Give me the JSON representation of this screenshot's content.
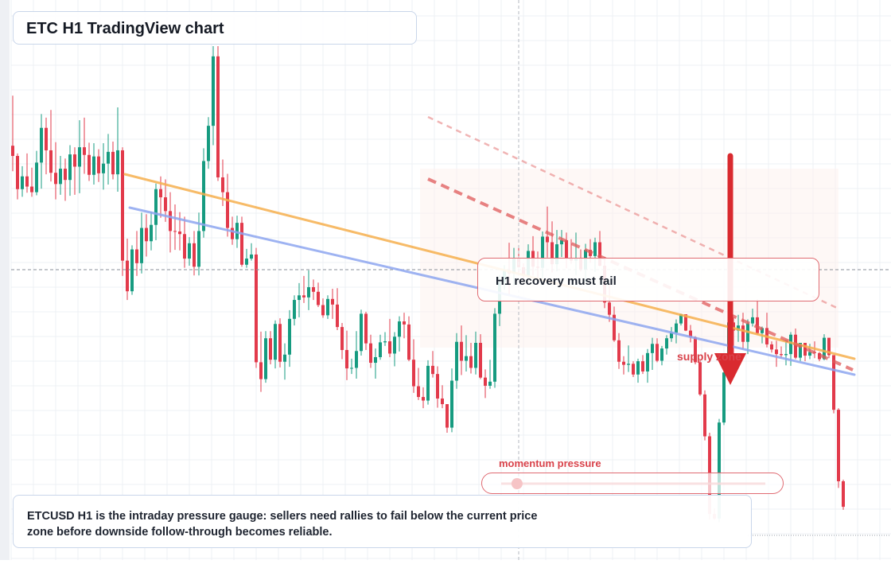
{
  "title": "ETC H1 TradingView chart",
  "callout": {
    "text": "H1 recovery must fail"
  },
  "supply": {
    "label": "supply zone"
  },
  "gauge": {
    "label": "momentum pressure",
    "level": 0.06,
    "color": "#e23a42"
  },
  "note": {
    "text": "ETCUSD H1 is the intraday pressure gauge: sellers need rallies to fail below the current price zone before downside follow-through becomes reliable."
  },
  "colors": {
    "up": "#169b80",
    "down": "#e23a4b",
    "trend_orange": "#f6b04e",
    "trend_blue": "#8ea6f0",
    "channel_red": "#e05a5a",
    "arrow": "#d92a2f",
    "grid": "#eef0f4"
  },
  "chart_data": {
    "type": "candlestick",
    "symbol": "ETCUSD",
    "timeframe": "H1",
    "ylim": [
      0,
      100
    ],
    "candles": [
      [
        80.5,
        90.3,
        75.5,
        78.5
      ],
      [
        78.5,
        79.0,
        70.0,
        72.0
      ],
      [
        72.0,
        76.5,
        70.5,
        74.5
      ],
      [
        74.5,
        79.0,
        71.3,
        72.5
      ],
      [
        72.5,
        76.2,
        70.5,
        71.4
      ],
      [
        71.4,
        79.5,
        70.8,
        77.2
      ],
      [
        77.2,
        86.7,
        72.1,
        84.0
      ],
      [
        84.0,
        86.0,
        74.9,
        79.6
      ],
      [
        79.6,
        87.5,
        73.5,
        75.2
      ],
      [
        75.2,
        81.2,
        70.0,
        73.0
      ],
      [
        73.0,
        78.5,
        70.9,
        76.0
      ],
      [
        76.0,
        78.0,
        69.7,
        73.8
      ],
      [
        73.8,
        80.6,
        70.7,
        78.8
      ],
      [
        78.8,
        80.2,
        70.9,
        76.4
      ],
      [
        76.4,
        85.5,
        71.2,
        80.2
      ],
      [
        80.2,
        86.0,
        75.0,
        78.7
      ],
      [
        78.7,
        81.1,
        73.6,
        74.8
      ],
      [
        74.8,
        81.0,
        72.9,
        78.4
      ],
      [
        78.4,
        79.8,
        73.4,
        75.1
      ],
      [
        75.1,
        81.0,
        71.9,
        77.0
      ],
      [
        77.0,
        82.8,
        72.9,
        79.3
      ],
      [
        79.3,
        81.3,
        73.9,
        74.9
      ],
      [
        74.9,
        88.0,
        71.5,
        79.6
      ],
      [
        79.6,
        80.2,
        55.0,
        58.0
      ],
      [
        58.0,
        62.3,
        50.3,
        52.0
      ],
      [
        52.0,
        61.0,
        51.3,
        60.2
      ],
      [
        60.2,
        63.8,
        55.0,
        57.5
      ],
      [
        57.5,
        67.4,
        55.5,
        64.4
      ],
      [
        64.4,
        67.1,
        58.8,
        61.8
      ],
      [
        61.8,
        67.6,
        60.0,
        65.0
      ],
      [
        65.0,
        73.1,
        62.0,
        72.0
      ],
      [
        72.0,
        74.5,
        66.4,
        70.4
      ],
      [
        70.4,
        73.9,
        65.6,
        67.7
      ],
      [
        67.7,
        71.4,
        59.6,
        63.8
      ],
      [
        63.8,
        69.0,
        60.1,
        63.7
      ],
      [
        63.7,
        67.5,
        60.0,
        63.2
      ],
      [
        63.2,
        66.6,
        56.6,
        58.4
      ],
      [
        58.4,
        62.6,
        57.0,
        61.4
      ],
      [
        61.4,
        63.8,
        55.1,
        56.8
      ],
      [
        56.8,
        67.4,
        55.1,
        63.8
      ],
      [
        63.8,
        80.0,
        62.5,
        77.5
      ],
      [
        77.5,
        86.1,
        76.0,
        84.4
      ],
      [
        84.4,
        100.0,
        80.6,
        98.0
      ],
      [
        98.0,
        100.0,
        73.6,
        74.3
      ],
      [
        74.3,
        77.8,
        68.7,
        71.4
      ],
      [
        71.4,
        75.0,
        62.7,
        64.4
      ],
      [
        64.4,
        66.6,
        61.1,
        62.2
      ],
      [
        62.2,
        66.8,
        60.5,
        65.4
      ],
      [
        65.4,
        66.6,
        56.8,
        57.2
      ],
      [
        57.2,
        60.3,
        56.6,
        58.4
      ],
      [
        58.4,
        61.4,
        58.0,
        59.2
      ],
      [
        59.2,
        60.5,
        37.0,
        38.1
      ],
      [
        38.1,
        44.1,
        32.3,
        34.8
      ],
      [
        34.8,
        44.2,
        34.1,
        42.8
      ],
      [
        42.8,
        44.2,
        37.7,
        38.6
      ],
      [
        38.6,
        46.3,
        36.9,
        45.6
      ],
      [
        45.6,
        46.7,
        37.1,
        38.2
      ],
      [
        38.2,
        41.8,
        34.7,
        39.6
      ],
      [
        39.6,
        48.3,
        37.2,
        46.6
      ],
      [
        46.6,
        51.2,
        45.3,
        50.3
      ],
      [
        50.3,
        53.6,
        46.9,
        51.2
      ],
      [
        51.2,
        55.0,
        49.7,
        50.8
      ],
      [
        50.8,
        56.1,
        48.3,
        52.8
      ],
      [
        52.8,
        54.3,
        50.3,
        51.9
      ],
      [
        51.9,
        53.7,
        48.9,
        49.3
      ],
      [
        49.3,
        50.6,
        46.8,
        47.3
      ],
      [
        47.3,
        51.2,
        46.6,
        50.5
      ],
      [
        50.5,
        52.5,
        46.6,
        49.4
      ],
      [
        49.4,
        52.6,
        44.4,
        45.0
      ],
      [
        45.0,
        45.8,
        38.7,
        40.5
      ],
      [
        40.5,
        44.3,
        34.6,
        36.9
      ],
      [
        36.9,
        38.8,
        35.8,
        37.0
      ],
      [
        37.0,
        44.2,
        34.9,
        40.3
      ],
      [
        40.3,
        48.4,
        39.4,
        47.6
      ],
      [
        47.6,
        48.0,
        40.5,
        41.8
      ],
      [
        41.8,
        43.5,
        37.0,
        38.0
      ],
      [
        38.0,
        40.8,
        34.9,
        39.1
      ],
      [
        39.1,
        43.5,
        38.6,
        42.0
      ],
      [
        42.0,
        44.0,
        41.3,
        42.2
      ],
      [
        42.2,
        46.6,
        39.1,
        39.8
      ],
      [
        39.8,
        44.0,
        37.3,
        43.1
      ],
      [
        43.1,
        47.1,
        40.2,
        46.1
      ],
      [
        46.1,
        47.8,
        42.8,
        45.5
      ],
      [
        45.5,
        47.1,
        38.3,
        38.6
      ],
      [
        38.6,
        42.6,
        32.1,
        33.4
      ],
      [
        33.4,
        37.0,
        30.7,
        31.3
      ],
      [
        31.3,
        33.2,
        29.1,
        30.6
      ],
      [
        30.6,
        38.5,
        29.8,
        37.4
      ],
      [
        37.4,
        40.3,
        35.1,
        35.8
      ],
      [
        35.8,
        37.3,
        29.2,
        31.0
      ],
      [
        31.0,
        33.6,
        29.1,
        29.9
      ],
      [
        29.9,
        29.9,
        24.3,
        25.3
      ],
      [
        25.3,
        36.9,
        24.4,
        34.5
      ],
      [
        34.5,
        43.8,
        32.9,
        42.1
      ],
      [
        42.1,
        45.3,
        35.6,
        38.4
      ],
      [
        38.4,
        43.4,
        36.3,
        39.3
      ],
      [
        39.3,
        41.9,
        35.9,
        37.0
      ],
      [
        37.0,
        44.1,
        35.7,
        41.9
      ],
      [
        41.9,
        43.6,
        34.8,
        35.1
      ],
      [
        35.1,
        36.7,
        31.1,
        33.5
      ],
      [
        33.5,
        38.6,
        32.9,
        34.3
      ],
      [
        34.3,
        48.7,
        33.1,
        47.6
      ],
      [
        47.6,
        55.2,
        45.2,
        53.8
      ],
      [
        53.8,
        57.1,
        52.3,
        56.1
      ],
      [
        56.1,
        61.5,
        51.4,
        55.5
      ],
      [
        55.5,
        60.5,
        53.1,
        58.4
      ],
      [
        58.4,
        60.8,
        55.7,
        56.7
      ],
      [
        56.7,
        57.5,
        53.9,
        55.1
      ],
      [
        55.1,
        61.2,
        54.7,
        59.9
      ],
      [
        59.9,
        62.8,
        55.1,
        56.8
      ],
      [
        56.8,
        59.8,
        53.3,
        56.6
      ],
      [
        56.6,
        63.7,
        54.5,
        62.7
      ],
      [
        62.7,
        68.6,
        58.6,
        61.6
      ],
      [
        61.6,
        65.7,
        55.7,
        57.3
      ],
      [
        57.3,
        64.0,
        55.9,
        61.2
      ],
      [
        61.2,
        64.0,
        58.7,
        62.0
      ],
      [
        62.0,
        63.5,
        56.5,
        58.5
      ],
      [
        58.5,
        62.2,
        57.4,
        58.0
      ],
      [
        58.0,
        63.5,
        55.2,
        58.5
      ],
      [
        58.5,
        60.2,
        55.9,
        56.2
      ],
      [
        56.2,
        61.3,
        53.8,
        60.1
      ],
      [
        60.1,
        62.2,
        57.6,
        58.9
      ],
      [
        58.9,
        62.5,
        55.8,
        61.6
      ],
      [
        61.6,
        63.8,
        56.9,
        57.0
      ],
      [
        57.0,
        58.7,
        48.7,
        49.8
      ],
      [
        49.8,
        53.5,
        46.0,
        47.4
      ],
      [
        47.4,
        49.0,
        42.1,
        42.4
      ],
      [
        42.4,
        43.8,
        36.8,
        38.2
      ],
      [
        38.2,
        39.3,
        35.7,
        37.6
      ],
      [
        37.6,
        41.4,
        36.2,
        37.8
      ],
      [
        37.8,
        38.3,
        35.2,
        35.7
      ],
      [
        35.7,
        38.8,
        34.1,
        38.3
      ],
      [
        38.3,
        39.5,
        35.8,
        36.3
      ],
      [
        36.3,
        40.7,
        34.1,
        39.9
      ],
      [
        39.9,
        42.9,
        36.6,
        41.7
      ],
      [
        41.7,
        42.8,
        38.1,
        38.4
      ],
      [
        38.4,
        41.3,
        37.5,
        40.8
      ],
      [
        40.8,
        43.4,
        39.6,
        42.8
      ],
      [
        42.8,
        45.0,
        42.1,
        43.9
      ],
      [
        43.9,
        46.5,
        41.8,
        45.7
      ],
      [
        45.7,
        47.6,
        45.3,
        47.5
      ],
      [
        47.5,
        47.3,
        44.2,
        44.3
      ],
      [
        44.3,
        45.4,
        42.0,
        43.0
      ],
      [
        43.0,
        43.2,
        37.7,
        38.1
      ],
      [
        38.1,
        38.5,
        31.5,
        31.8
      ],
      [
        31.8,
        32.6,
        22.8,
        23.6
      ],
      [
        23.6,
        24.3,
        7.3,
        8.4
      ],
      [
        8.4,
        9.5,
        7.2,
        7.5
      ],
      [
        7.5,
        27.0,
        6.8,
        26.3
      ],
      [
        26.3,
        37.1,
        25.8,
        36.1
      ],
      [
        36.1,
        46.6,
        35.5,
        45.9
      ],
      [
        45.9,
        46.8,
        38.7,
        44.3
      ],
      [
        44.3,
        47.4,
        42.1,
        45.3
      ],
      [
        45.3,
        47.8,
        40.7,
        42.1
      ],
      [
        42.1,
        46.5,
        39.7,
        45.7
      ],
      [
        45.7,
        48.6,
        45.1,
        46.9
      ],
      [
        46.9,
        50.4,
        43.5,
        43.8
      ],
      [
        43.8,
        45.1,
        41.8,
        44.8
      ],
      [
        44.8,
        47.8,
        41.0,
        41.6
      ],
      [
        41.6,
        42.2,
        40.0,
        40.6
      ],
      [
        40.6,
        42.3,
        37.2,
        39.7
      ],
      [
        39.7,
        41.2,
        38.9,
        39.5
      ],
      [
        39.5,
        42.5,
        37.5,
        39.7
      ],
      [
        39.7,
        44.0,
        37.4,
        43.5
      ],
      [
        43.5,
        44.7,
        38.7,
        39.0
      ],
      [
        39.0,
        41.9,
        38.3,
        41.9
      ],
      [
        41.9,
        41.1,
        38.3,
        39.4
      ],
      [
        39.4,
        41.7,
        38.7,
        40.1
      ],
      [
        40.1,
        42.2,
        38.9,
        39.9
      ],
      [
        39.9,
        40.1,
        38.3,
        38.7
      ],
      [
        38.7,
        43.6,
        38.5,
        42.9
      ],
      [
        42.9,
        42.7,
        38.9,
        39.5
      ],
      [
        39.5,
        39.0,
        28.1,
        28.8
      ],
      [
        28.8,
        29.1,
        13.5,
        14.8
      ],
      [
        14.8,
        15.1,
        9.2,
        9.8
      ]
    ]
  }
}
